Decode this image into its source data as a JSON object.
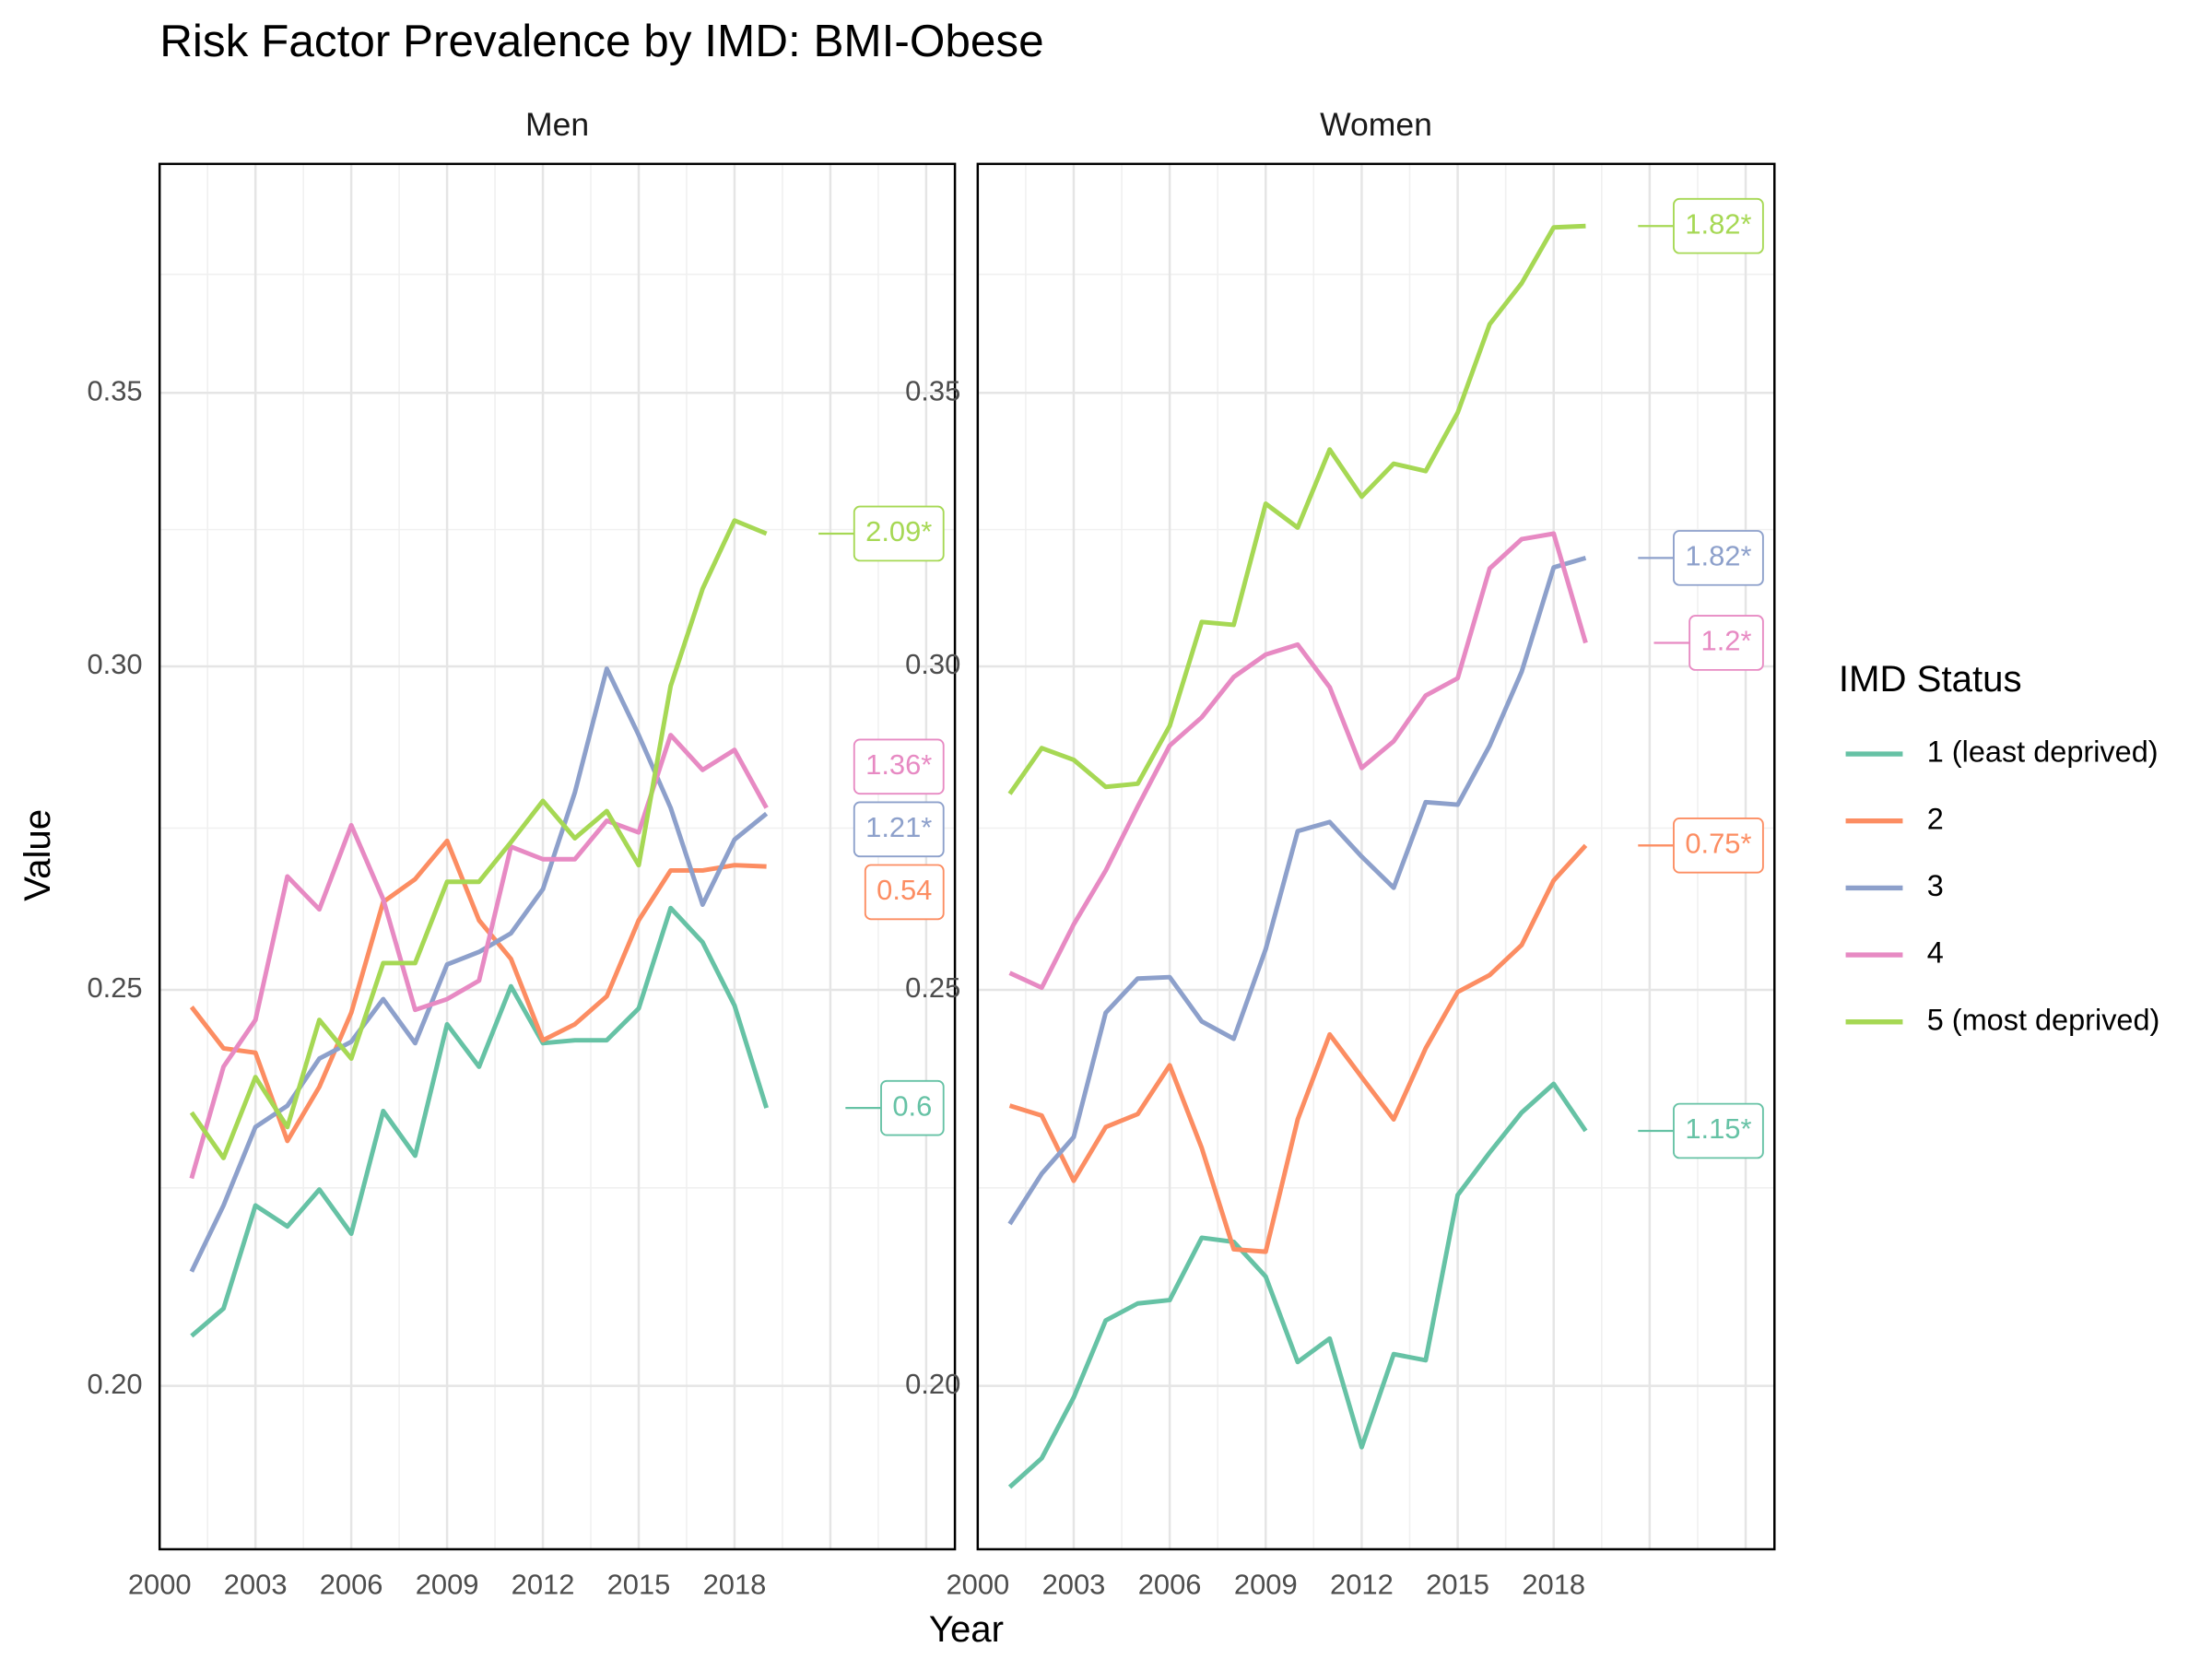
{
  "title": "Risk Factor Prevalence by IMD: BMI-Obese",
  "x_label": "Year",
  "y_label": "Value",
  "legend_title": "IMD Status",
  "chart_data": [
    {
      "type": "line",
      "title": "Men",
      "x": [
        2001,
        2002,
        2003,
        2004,
        2005,
        2006,
        2007,
        2008,
        2009,
        2010,
        2011,
        2012,
        2013,
        2014,
        2015,
        2016,
        2017,
        2018,
        2019
      ],
      "xlim": [
        2000,
        2024.9
      ],
      "ylim": [
        0.1824,
        0.3982
      ],
      "log_y": true,
      "grid": true,
      "xticks": [
        2000,
        2003,
        2006,
        2009,
        2012,
        2015,
        2018
      ],
      "yticks": [
        {
          "value": 0.2,
          "label": "0.20"
        },
        0.25,
        {
          "value": 0.3,
          "label": "0.30"
        },
        0.35
      ],
      "series": [
        {
          "name": "1 (least deprived)",
          "color": "#66c2a5",
          "label": "0.6",
          "values": [
            0.2057,
            0.2089,
            0.2214,
            0.2188,
            0.2234,
            0.2179,
            0.2335,
            0.2277,
            0.2452,
            0.2394,
            0.2505,
            0.2426,
            0.243,
            0.243,
            0.2474,
            0.2618,
            0.2568,
            0.2478,
            0.2339
          ]
        },
        {
          "name": "2",
          "color": "#fc8d62",
          "label": "0.54",
          "values": [
            0.2476,
            0.2419,
            0.2413,
            0.2296,
            0.2367,
            0.2468,
            0.2627,
            0.2661,
            0.2719,
            0.26,
            0.2544,
            0.243,
            0.2452,
            0.2491,
            0.26,
            0.2674,
            0.2674,
            0.2682,
            0.268
          ]
        },
        {
          "name": "3",
          "color": "#8da0cb",
          "label": "1.21*",
          "values": [
            0.2133,
            0.2214,
            0.2314,
            0.2342,
            0.2405,
            0.2428,
            0.2487,
            0.2426,
            0.2536,
            0.2554,
            0.2581,
            0.2646,
            0.2794,
            0.2996,
            0.2886,
            0.277,
            0.2623,
            0.2721,
            0.2761
          ]
        },
        {
          "name": "4",
          "color": "#e78ac3",
          "label": "1.36*",
          "values": [
            0.2248,
            0.2394,
            0.2458,
            0.2665,
            0.2616,
            0.2743,
            0.2631,
            0.2472,
            0.2487,
            0.2513,
            0.271,
            0.2691,
            0.2691,
            0.275,
            0.2732,
            0.2886,
            0.283,
            0.2862,
            0.277
          ]
        },
        {
          "name": "5 (most deprived)",
          "color": "#a6d854",
          "label": "2.09*",
          "values": [
            0.2333,
            0.2274,
            0.238,
            0.2314,
            0.2458,
            0.2405,
            0.2538,
            0.2538,
            0.2657,
            0.2657,
            0.2717,
            0.2781,
            0.2723,
            0.2765,
            0.2682,
            0.2967,
            0.3134,
            0.3257,
            0.3233
          ]
        }
      ]
    },
    {
      "type": "line",
      "title": "Women",
      "x": [
        2001,
        2002,
        2003,
        2004,
        2005,
        2006,
        2007,
        2008,
        2009,
        2010,
        2011,
        2012,
        2013,
        2014,
        2015,
        2016,
        2017,
        2018,
        2019
      ],
      "xlim": [
        2000,
        2024.9
      ],
      "ylim": [
        0.1824,
        0.3982
      ],
      "log_y": true,
      "grid": true,
      "xticks": [
        2000,
        2003,
        2006,
        2009,
        2012,
        2015,
        2018
      ],
      "yticks": [
        {
          "value": 0.2,
          "label": "0.20"
        },
        0.25,
        {
          "value": 0.3,
          "label": "0.30"
        },
        0.35
      ],
      "series": [
        {
          "name": "1 (least deprived)",
          "color": "#66c2a5",
          "label": "1.15*",
          "values": [
            0.1889,
            0.192,
            0.1987,
            0.2075,
            0.2095,
            0.2099,
            0.2174,
            0.2169,
            0.2127,
            0.2027,
            0.2054,
            0.1932,
            0.2036,
            0.2029,
            0.2227,
            0.2281,
            0.2333,
            0.2371,
            0.2309
          ]
        },
        {
          "name": "2",
          "color": "#fc8d62",
          "label": "0.75*",
          "values": [
            0.2342,
            0.2329,
            0.2245,
            0.2314,
            0.2331,
            0.2396,
            0.2287,
            0.216,
            0.2157,
            0.2324,
            0.2438,
            0.238,
            0.2324,
            0.2419,
            0.2497,
            0.2521,
            0.2564,
            0.2659,
            0.2712
          ]
        },
        {
          "name": "3",
          "color": "#8da0cb",
          "label": "1.82*",
          "values": [
            0.2191,
            0.2254,
            0.2301,
            0.2468,
            0.2516,
            0.2518,
            0.2456,
            0.2432,
            0.2558,
            0.2734,
            0.2748,
            0.2695,
            0.2648,
            0.2779,
            0.2775,
            0.2869,
            0.2991,
            0.3172,
            0.3189
          ]
        },
        {
          "name": "4",
          "color": "#e78ac3",
          "label": "1.2*",
          "values": [
            0.2524,
            0.2503,
            0.2594,
            0.2674,
            0.2772,
            0.2869,
            0.2915,
            0.2982,
            0.302,
            0.3037,
            0.2965,
            0.2833,
            0.2876,
            0.2951,
            0.298,
            0.317,
            0.3223,
            0.3233,
            0.304
          ]
        },
        {
          "name": "5 (most deprived)",
          "color": "#a6d854",
          "label": "1.82*",
          "values": [
            0.2792,
            0.2865,
            0.2846,
            0.2803,
            0.2808,
            0.2901,
            0.3076,
            0.3071,
            0.3288,
            0.3244,
            0.339,
            0.3301,
            0.3363,
            0.3349,
            0.3461,
            0.3638,
            0.3723,
            0.3842,
            0.3845
          ]
        }
      ]
    }
  ]
}
